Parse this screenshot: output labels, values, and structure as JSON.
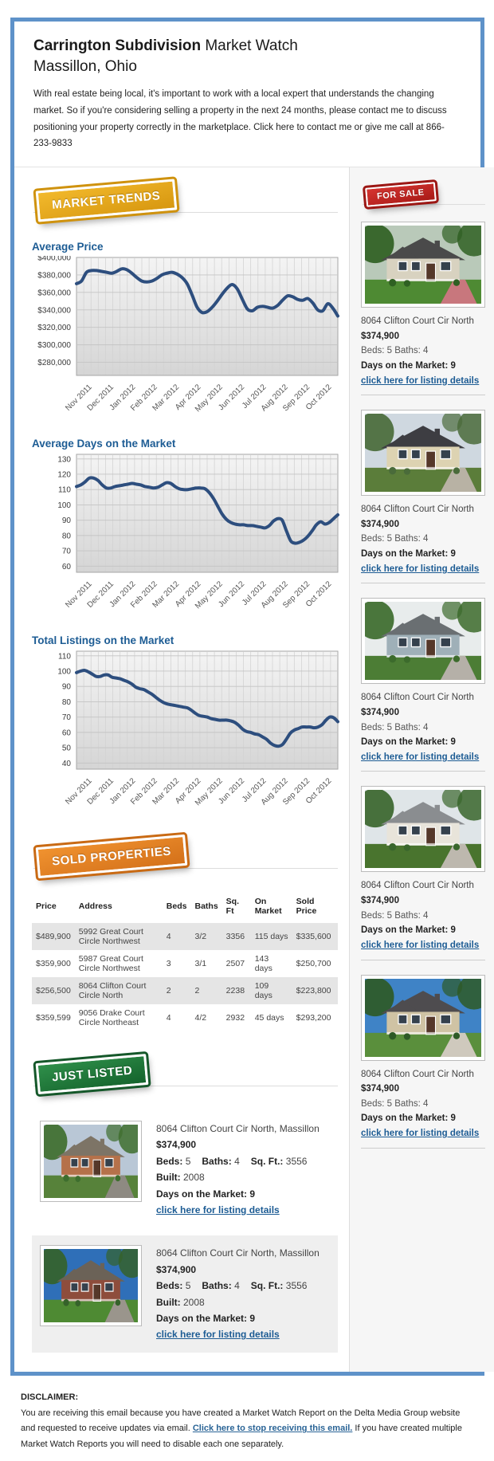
{
  "header": {
    "title_bold": "Carrington Subdivision",
    "title_rest": " Market Watch",
    "subtitle": "Massillon, Ohio",
    "intro": "With real estate being local, it's important to work with a local expert that understands the changing market. So if you're considering selling a property in the next 24 months, please contact me to discuss positioning your property correctly in the marketplace. Click here to contact me or give me call at 866-233-9833"
  },
  "badges": {
    "market_trends": "MARKET TRENDS",
    "for_sale": "FOR SALE",
    "sold_properties": "SOLD PROPERTIES",
    "just_listed": "JUST LISTED"
  },
  "colors": {
    "container_border": "#5e92c9",
    "heading_blue": "#1d5c94",
    "chart_line": "#2d4e7e",
    "link_blue": "#1d5c94",
    "badge_gold": "#e9a81c",
    "badge_red": "#c8302c",
    "badge_orange": "#e2801f",
    "badge_green": "#237a38"
  },
  "chart_data": [
    {
      "type": "line",
      "title": "Average Price",
      "xlabel": "",
      "ylabel": "",
      "x_labels": [
        "Nov 2011",
        "Dec 2011",
        "Jan 2012",
        "Feb 2012",
        "Mar 2012",
        "Apr 2012",
        "May 2012",
        "Jun 2012",
        "Jul 2012",
        "Aug 2012",
        "Sep 2012",
        "Oct 2012"
      ],
      "ylim": [
        265000,
        400000
      ],
      "y_ticks": [
        {
          "v": 400000,
          "label": "$400,000"
        },
        {
          "v": 380000,
          "label": "$380,000"
        },
        {
          "v": 360000,
          "label": "$360,000"
        },
        {
          "v": 340000,
          "label": "$340,000"
        },
        {
          "v": 320000,
          "label": "$320,000"
        },
        {
          "v": 300000,
          "label": "$300,000"
        },
        {
          "v": 280000,
          "label": "$280,000"
        }
      ],
      "values": [
        370000,
        373000,
        383000,
        385000,
        385000,
        384000,
        383000,
        382000,
        384000,
        387000,
        386000,
        382000,
        377000,
        373000,
        372000,
        373000,
        376000,
        380000,
        382000,
        383000,
        381000,
        377000,
        370000,
        357000,
        343000,
        337000,
        338000,
        343000,
        350000,
        358000,
        365000,
        369000,
        364000,
        352000,
        341000,
        339000,
        343000,
        344000,
        343000,
        342000,
        345000,
        351000,
        356000,
        355000,
        352000,
        351000,
        353000,
        348000,
        340000,
        339000,
        347000,
        342000,
        333000
      ],
      "grid": true,
      "legend": "none"
    },
    {
      "type": "line",
      "title": "Average Days on the Market",
      "xlabel": "",
      "ylabel": "",
      "x_labels": [
        "Nov 2011",
        "Dec 2011",
        "Jan 2012",
        "Feb 2012",
        "Mar 2012",
        "Apr 2012",
        "May 2012",
        "Jun 2012",
        "Jul 2012",
        "Aug 2012",
        "Sep 2012",
        "Oct 2012"
      ],
      "ylim": [
        56,
        133
      ],
      "y_ticks": [
        {
          "v": 130,
          "label": "130"
        },
        {
          "v": 120,
          "label": "120"
        },
        {
          "v": 110,
          "label": "110"
        },
        {
          "v": 100,
          "label": "100"
        },
        {
          "v": 90,
          "label": "90"
        },
        {
          "v": 80,
          "label": "80"
        },
        {
          "v": 70,
          "label": "70"
        },
        {
          "v": 60,
          "label": "60"
        }
      ],
      "values": [
        112,
        113,
        115,
        117.5,
        117.5,
        116,
        113,
        111,
        111,
        112,
        112.5,
        113,
        113.5,
        114,
        113.5,
        113,
        112,
        111.5,
        111,
        111.5,
        113,
        114.5,
        114,
        112,
        110.5,
        110,
        110,
        110.5,
        111,
        111,
        110.5,
        108,
        104,
        99,
        94,
        90.5,
        88.5,
        87.5,
        87,
        87,
        86.5,
        86.5,
        86,
        85.5,
        85,
        86.5,
        89.5,
        91,
        90,
        83,
        76.5,
        75,
        75.5,
        77,
        79.5,
        83,
        87,
        89,
        87.5,
        88.5,
        91,
        93.5
      ],
      "grid": true,
      "legend": "none"
    },
    {
      "type": "line",
      "title": "Total Listings on the Market",
      "xlabel": "",
      "ylabel": "",
      "x_labels": [
        "Nov 2011",
        "Dec 2011",
        "Jan 2012",
        "Feb 2012",
        "Mar 2012",
        "Apr 2012",
        "May 2012",
        "Jun 2012",
        "Jul 2012",
        "Aug 2012",
        "Sep 2012",
        "Oct 2012"
      ],
      "ylim": [
        36,
        113
      ],
      "y_ticks": [
        {
          "v": 110,
          "label": "110"
        },
        {
          "v": 100,
          "label": "100"
        },
        {
          "v": 90,
          "label": "90"
        },
        {
          "v": 80,
          "label": "80"
        },
        {
          "v": 70,
          "label": "70"
        },
        {
          "v": 60,
          "label": "60"
        },
        {
          "v": 50,
          "label": "50"
        },
        {
          "v": 40,
          "label": "40"
        }
      ],
      "values": [
        99,
        100,
        100.5,
        99.5,
        98,
        96.5,
        96.5,
        97.5,
        97.5,
        96,
        95.5,
        95,
        94,
        93,
        91.5,
        89.5,
        88.5,
        88,
        86.5,
        85,
        83,
        81,
        79.5,
        78.5,
        78,
        77.5,
        77,
        76.5,
        76,
        74.5,
        72.5,
        71,
        70.5,
        70,
        69,
        68.5,
        68,
        68,
        68,
        67.5,
        66.5,
        64.5,
        62,
        60.5,
        60,
        59,
        58.5,
        57,
        55.5,
        53,
        51.5,
        51,
        52,
        55.5,
        59.5,
        61.5,
        62.5,
        63.5,
        63.5,
        63.5,
        63,
        63.5,
        65,
        68,
        70,
        69.5,
        67
      ],
      "grid": true,
      "legend": "none"
    }
  ],
  "sold": {
    "headers": [
      "Price",
      "Address",
      "Beds",
      "Baths",
      "Sq. Ft",
      "On Market",
      "Sold Price"
    ],
    "rows": [
      [
        "$489,900",
        "5992 Great Court Circle Northwest",
        "4",
        "3/2",
        "3356",
        "115 days",
        "$335,600"
      ],
      [
        "$359,900",
        "5987 Great Court Circle Northwest",
        "3",
        "3/1",
        "2507",
        "143 days",
        "$250,700"
      ],
      [
        "$256,500",
        "8064 Clifton Court Circle North",
        "2",
        "2",
        "2238",
        "109 days",
        "$223,800"
      ],
      [
        "$359,599",
        "9056 Drake Court Circle Northeast",
        "4",
        "4/2",
        "2932",
        "45 days",
        "$293,200"
      ]
    ]
  },
  "labels": {
    "beds": "Beds:",
    "baths": "Baths:",
    "sqft": "Sq. Ft.:",
    "built": "Built:",
    "days": "Days on the Market:"
  },
  "for_sale_items": [
    {
      "address": "8064 Clifton Court Cir North",
      "price": "$374,900",
      "beds": "5",
      "baths": "4",
      "days": "9",
      "link": "click here for listing details",
      "photo": {
        "sky": "#b9c9b9",
        "tree": "#2f6022",
        "grass": "#4e8a33",
        "wall": "#d8d2c0",
        "roof": "#4a4a4a",
        "path": "#c8777d"
      }
    },
    {
      "address": "8064 Clifton Court Cir North",
      "price": "$374,900",
      "beds": "5",
      "baths": "4",
      "days": "9",
      "link": "click here for listing details",
      "photo": {
        "sky": "#cfd8e0",
        "tree": "#4a6b3a",
        "grass": "#5b7d3a",
        "wall": "#ddd3b2",
        "roof": "#3d3d42",
        "path": "#b8b2a4"
      }
    },
    {
      "address": "8064 Clifton Court Cir North",
      "price": "$374,900",
      "beds": "5",
      "baths": "4",
      "days": "9",
      "link": "click here for listing details",
      "photo": {
        "sky": "#e8ecec",
        "tree": "#3c6b2c",
        "grass": "#4c7d35",
        "wall": "#9fb0b8",
        "roof": "#6a6f72",
        "path": "#b5b0a8"
      }
    },
    {
      "address": "8064 Clifton Court Cir North",
      "price": "$374,900",
      "beds": "5",
      "baths": "4",
      "days": "9",
      "link": "click here for listing details",
      "photo": {
        "sky": "#dfe5e8",
        "tree": "#39662c",
        "grass": "#49742e",
        "wall": "#e8e4da",
        "roof": "#8a8d90",
        "path": "#bdb8ae"
      }
    },
    {
      "address": "8064 Clifton Court Cir North",
      "price": "$374,900",
      "beds": "5",
      "baths": "4",
      "days": "9",
      "link": "click here for listing details",
      "photo": {
        "sky": "#3f83c6",
        "tree": "#2e5a26",
        "grass": "#5a8f3c",
        "wall": "#cfc3a4",
        "roof": "#4e4c4f",
        "path": "#cfc9bd"
      }
    }
  ],
  "just_listed_items": [
    {
      "address": "8064 Clifton Court Cir North, Massillon",
      "price": "$374,900",
      "beds": "5",
      "baths": "4",
      "sqft": "3556",
      "built": "2008",
      "days": "9",
      "link": "click here for listing details",
      "photo": {
        "sky": "#b9c7d6",
        "tree": "#3e6e2e",
        "grass": "#57823a",
        "wall": "#b5714a",
        "roof": "#7d7466",
        "path": "#8e8a82"
      }
    },
    {
      "address": "8064 Clifton Court Cir North, Massillon",
      "price": "$374,900",
      "beds": "5",
      "baths": "4",
      "sqft": "3556",
      "built": "2008",
      "days": "9",
      "link": "click here for listing details",
      "photo": {
        "sky": "#2f6fb8",
        "tree": "#35622a",
        "grass": "#4e8a33",
        "wall": "#8e4d3c",
        "roof": "#6b6257",
        "path": "#9a958c"
      }
    }
  ],
  "footer": {
    "disclaimer_label": "DISCLAIMER:",
    "text_before": "You are receiving this email because you have created a Market Watch Report on the Delta Media Group website and requested to receive updates via email. ",
    "link": "Click here to stop receiving this email.",
    "text_after": " If you have created multiple Market Watch Reports you will need to disable each one separately."
  }
}
